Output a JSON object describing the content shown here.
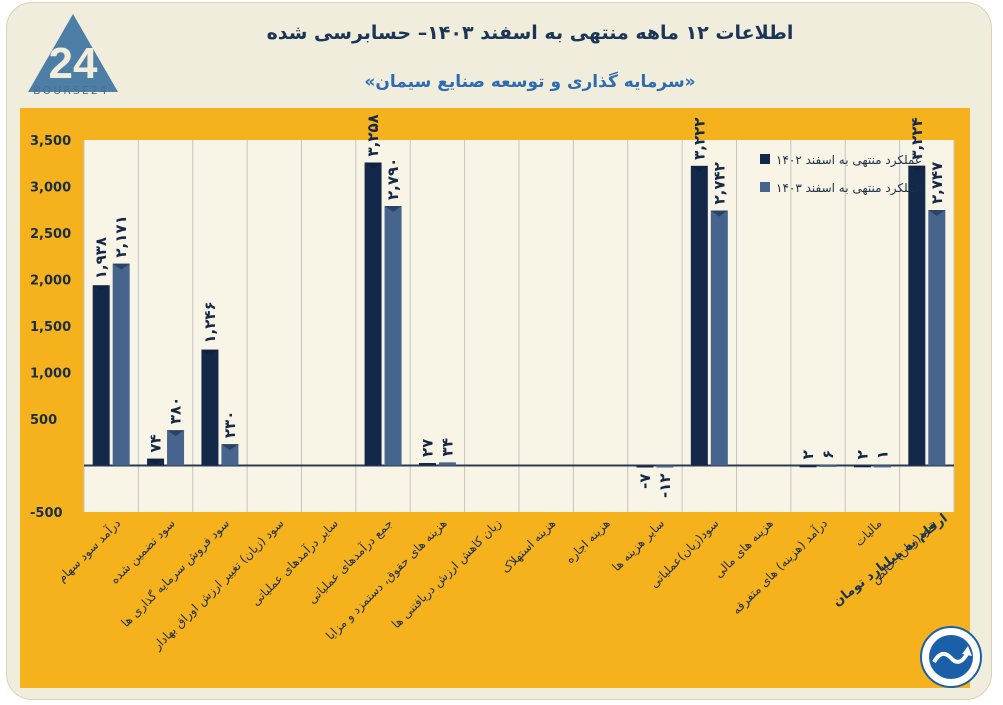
{
  "header": {
    "title": "اطلاعات ۱۲ ماهه منتهی به اسفند ۱۴۰۳– حسابرسی شده",
    "subtitle": "«سرمایه گذاری و توسعه صنایع سیمان»",
    "logo_text": "BOURSE24"
  },
  "footer": {
    "unit_note": "ارقام به میلیارد تومان"
  },
  "colors": {
    "background": "#f1eddc",
    "panel": "#f6b21c",
    "series_1402": "#14294a",
    "series_1403": "#46648c",
    "title": "#1b3556",
    "subtitle": "#2e6cb0"
  },
  "chart_data": {
    "type": "bar",
    "ylim": [
      -500,
      3500
    ],
    "yticks": [
      "-500",
      "500",
      "1,000",
      "1,500",
      "2,000",
      "2,500",
      "3,000",
      "3,500"
    ],
    "ytick_values": [
      -500,
      500,
      1000,
      1500,
      2000,
      2500,
      3000,
      3500
    ],
    "grid": "vertical",
    "legend_position": "top-right",
    "categories": [
      "درآمد سود سهام",
      "سود تضمین شده",
      "سود فروش سرمایه گذاری ها",
      "سود (زیان) تغییر ارزش اوراق بهادار",
      "سایر درآمدهای عملیاتی",
      "جمع درآمدهای عملیاتی",
      "هزینه های حقوق، دستمزد و مزایا",
      "زیان کاهش ارزش دریافتنی ها",
      "هزینه استهلاک",
      "هزینه اجاره",
      "سایر هزینه ها",
      "سود(زیان)عملیاتی",
      "هزینه های مالی",
      "درآمد (هزینه) های متفرقه",
      "مالیات",
      "سود(زیان) خالص"
    ],
    "series": [
      {
        "name": "عملکرد منتهی به اسفند ۱۴۰۲",
        "values": [
          1938,
          74,
          1246,
          null,
          null,
          3258,
          27,
          null,
          null,
          null,
          -7,
          3222,
          null,
          2,
          2,
          3224
        ],
        "labels": [
          "۱,۹۳۸",
          "۷۴",
          "۱,۲۴۶",
          "",
          "",
          "۳,۲۵۸",
          "۲۷",
          "",
          "",
          "",
          "-۷",
          "۳,۲۲۲",
          "",
          "۲",
          "۲",
          "۳,۲۲۴"
        ]
      },
      {
        "name": "عملکرد منتهی به اسفند ۱۴۰۳",
        "values": [
          2171,
          380,
          230,
          null,
          null,
          2790,
          34,
          null,
          null,
          null,
          -12,
          2742,
          null,
          6,
          1,
          2747
        ],
        "labels": [
          "۲,۱۷۱",
          "۳۸۰",
          "۲۳۰",
          "",
          "",
          "۲,۷۹۰",
          "۳۴",
          "",
          "",
          "",
          "-۱۲",
          "۲,۷۴۲",
          "",
          "۶",
          "۱",
          "۲,۷۴۷"
        ]
      }
    ]
  }
}
